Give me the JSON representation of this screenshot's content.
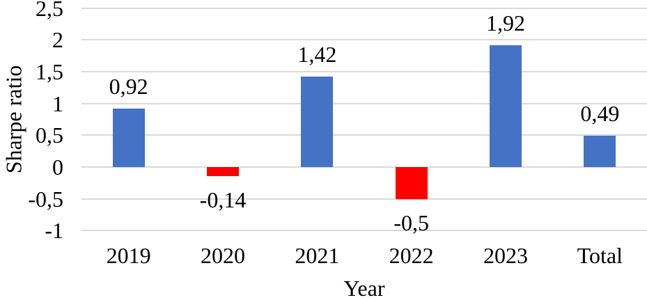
{
  "chart_data": {
    "type": "bar",
    "title": "",
    "xlabel": "Year",
    "ylabel": "Sharpe ratio",
    "categories": [
      "2019",
      "2020",
      "2021",
      "2022",
      "2023",
      "Total"
    ],
    "values": [
      0.92,
      -0.14,
      1.42,
      -0.5,
      1.92,
      0.49
    ],
    "value_labels": [
      "0,92",
      "-0,14",
      "1,42",
      "-0,5",
      "1,92",
      "0,49"
    ],
    "bar_colors": [
      "#4472C4",
      "#FF0000",
      "#4472C4",
      "#FF0000",
      "#4472C4",
      "#4472C4"
    ],
    "ylim": [
      -1,
      2.5
    ],
    "ytick_step": 0.5,
    "ytick_labels": [
      "2,5",
      "2",
      "1,5",
      "1",
      "0,5",
      "0",
      "-0,5",
      "-1"
    ],
    "grid": "horizontal",
    "legend": "none",
    "colors": {
      "positive_bar": "#4472C4",
      "negative_bar": "#FF0000",
      "gridline": "#D9D9D9",
      "text": "#000000",
      "background": "#FFFFFF"
    }
  }
}
